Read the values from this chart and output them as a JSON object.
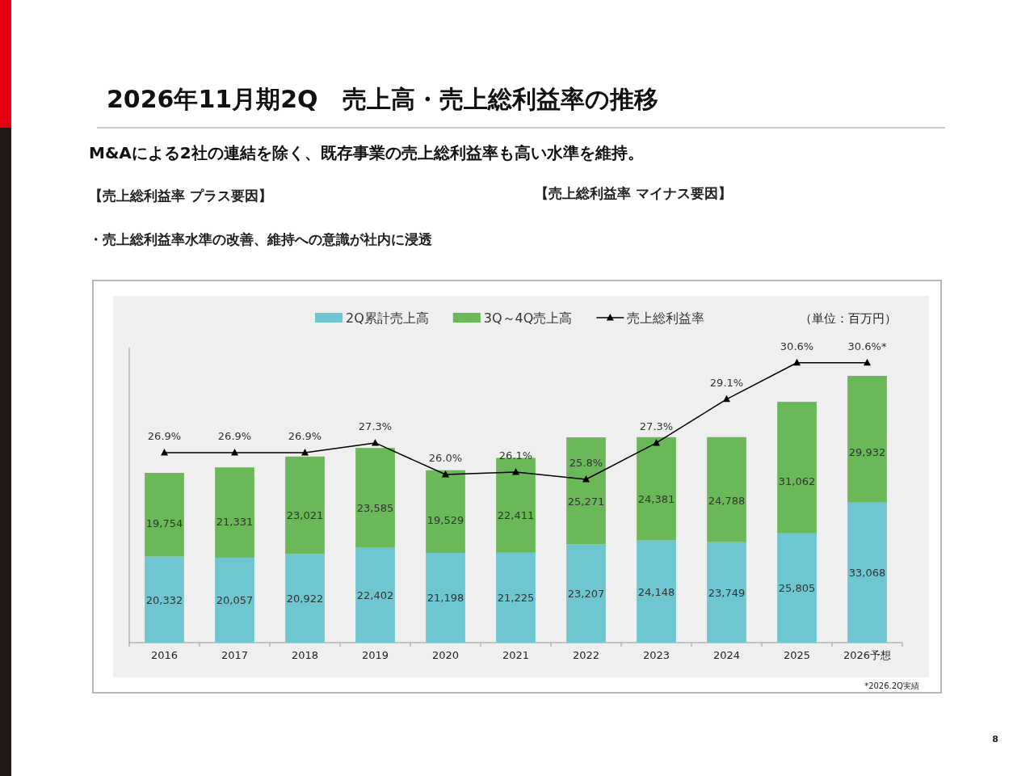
{
  "chart_data": {
    "type": "bar",
    "stacked": true,
    "title": "2026年11月期2Q　売上高・売上総利益率の推移",
    "subtitle": "M&Aによる2社の連結を除く、既存事業の売上総利益率も高い水準を維持。",
    "annotations": [
      "【売上総利益率 プラス要因】",
      "・売上総利益率水準の改善、維持への意識が社内に浸透",
      "【売上総利益率 マイナス要因】",
      "（単位：百万円）",
      "*2026.2Q実績",
      "8"
    ],
    "categories": [
      "2016",
      "2017",
      "2018",
      "2019",
      "2020",
      "2021",
      "2022",
      "2023",
      "2024",
      "2025",
      "2026予想"
    ],
    "series": [
      {
        "name": "2Q累計売上高",
        "color": "#6ec6d0",
        "values": [
          20332,
          20057,
          20922,
          22402,
          21198,
          21225,
          23207,
          24148,
          23749,
          25805,
          33068
        ],
        "value_labels": [
          "20,332",
          "20,057",
          "20,922",
          "22,402",
          "21,198",
          "21,225",
          "23,207",
          "24,148",
          "23,749",
          "25,805",
          "33,068"
        ]
      },
      {
        "name": "3Q～4Q売上高",
        "color": "#6ab857",
        "values": [
          19754,
          21331,
          23021,
          23585,
          19529,
          22411,
          25271,
          24381,
          24788,
          31062,
          29932
        ],
        "value_labels": [
          "19,754",
          "21,331",
          "23,021",
          "23,585",
          "19,529",
          "22,411",
          "25,271",
          "24,381",
          "24,788",
          "31,062",
          "29,932"
        ]
      },
      {
        "name": "売上総利益率",
        "type": "line",
        "axis": "y2",
        "color": "#000000",
        "marker": "triangle",
        "values": [
          26.9,
          26.9,
          26.9,
          27.3,
          26.0,
          26.1,
          25.8,
          27.3,
          29.1,
          30.6,
          30.6
        ],
        "value_labels": [
          "26.9%",
          "26.9%",
          "26.9%",
          "27.3%",
          "26.0%",
          "26.1%",
          "25.8%",
          "27.3%",
          "29.1%",
          "30.6%",
          "30.6%*"
        ]
      }
    ],
    "data_labels": true,
    "legend": "top",
    "tick_labels": "x",
    "grid": false
  }
}
